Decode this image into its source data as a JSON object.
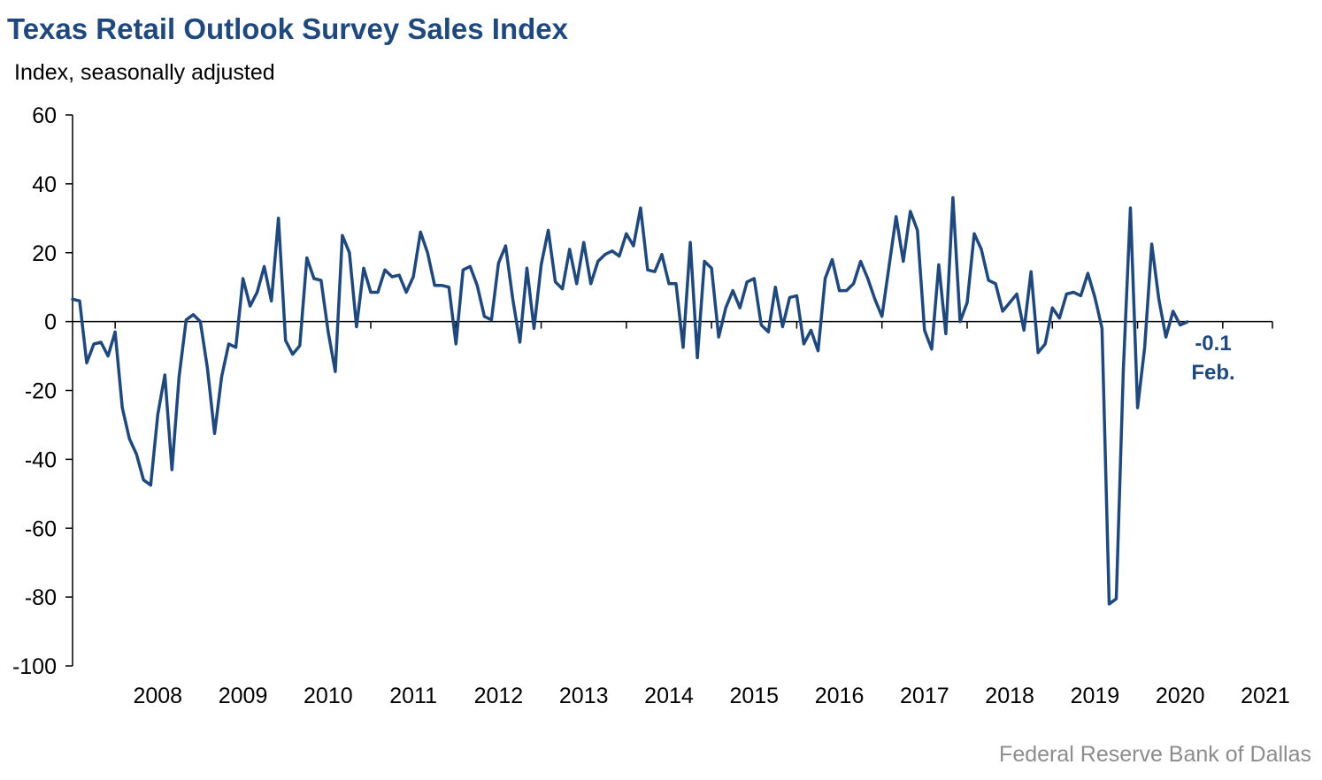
{
  "title": "Texas Retail Outlook Survey Sales Index",
  "subtitle": "Index, seasonally adjusted",
  "source": "Federal Reserve Bank of Dallas",
  "colors": {
    "line": "#1f497d",
    "axis": "#000000",
    "title": "#1f497d",
    "source": "#8c8c8c"
  },
  "chart_data": {
    "type": "line",
    "title": "Texas Retail Outlook Survey Sales Index",
    "ylabel": "Index, seasonally adjusted",
    "ylim": [
      -100,
      60
    ],
    "yticks": [
      60,
      40,
      20,
      0,
      -20,
      -40,
      -60,
      -80,
      -100
    ],
    "xlim": [
      "2007-07",
      "2021-08"
    ],
    "xticks": [
      "2008",
      "2009",
      "2010",
      "2011",
      "2012",
      "2013",
      "2014",
      "2015",
      "2016",
      "2017",
      "2018",
      "2019",
      "2020",
      "2021"
    ],
    "grid": false,
    "legend": "none",
    "annotation": {
      "value": "-0.1",
      "label": "Feb."
    },
    "series": [
      {
        "start": "2007-07",
        "frequency": "monthly",
        "values": [
          6.5,
          6,
          -12,
          -6.5,
          -6,
          -10,
          -3,
          -25,
          -34,
          -38.5,
          -46,
          -47.5,
          -27,
          -15.5,
          -43,
          -16,
          0.5,
          2,
          0,
          -13.5,
          -32.5,
          -16,
          -6.5,
          -7.5,
          12.5,
          4.5,
          8.5,
          16,
          6,
          30,
          -5.5,
          -9.5,
          -7,
          18.5,
          12.5,
          12,
          -3,
          -14.5,
          25,
          20,
          -1.5,
          15.5,
          8.5,
          8.5,
          15,
          13,
          13.5,
          8.5,
          13,
          26,
          20,
          10.5,
          10.5,
          10,
          -6.5,
          15,
          16,
          10.5,
          1.5,
          0.5,
          17,
          22,
          6.5,
          -6,
          15.5,
          -2,
          16.5,
          26.5,
          11.5,
          9.5,
          21,
          11,
          23,
          11,
          17.5,
          19.5,
          20.5,
          19,
          25.5,
          22,
          33,
          15,
          14.5,
          19.5,
          11,
          11,
          -7.5,
          23,
          -10.5,
          17.5,
          15.5,
          -4.5,
          4,
          9,
          4,
          11.5,
          12.5,
          -1,
          -3,
          10,
          -1.5,
          7,
          7.5,
          -6.5,
          -2.5,
          -8.5,
          12.5,
          18,
          9,
          9,
          11,
          17.5,
          12.5,
          6.5,
          1.5,
          16,
          30.5,
          17.5,
          32,
          26.5,
          -2.5,
          -8,
          16.5,
          -3.5,
          36,
          0,
          5.5,
          25.5,
          21,
          12,
          11,
          3,
          5.5,
          8,
          -2.5,
          14.5,
          -9,
          -6.5,
          4,
          1,
          8,
          8.5,
          7.5,
          14,
          7,
          -2,
          -82,
          -80.5,
          -14,
          33,
          -25,
          -7.5,
          22.5,
          6.5,
          -4.5,
          3,
          -1,
          -0.1
        ]
      }
    ]
  }
}
